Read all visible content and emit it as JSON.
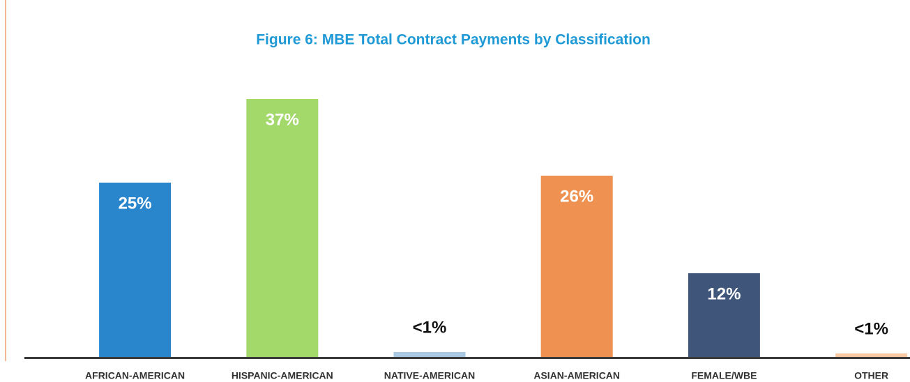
{
  "chart_data": {
    "type": "bar",
    "title": "Figure 6: MBE Total Contract Payments by Classification",
    "categories": [
      "AFRICAN-AMERICAN",
      "HISPANIC-AMERICAN",
      "NATIVE-AMERICAN",
      "ASIAN-AMERICAN",
      "FEMALE/WBE",
      "OTHER"
    ],
    "values": [
      25,
      37,
      0.7,
      26,
      12,
      0.5
    ],
    "value_labels": [
      "25%",
      "37%",
      "<1%",
      "26%",
      "12%",
      "<1%"
    ],
    "colors": [
      "#2a86cc",
      "#a3d86a",
      "#a9c9e5",
      "#ef9150",
      "#3f557a",
      "#f8caa5"
    ]
  }
}
